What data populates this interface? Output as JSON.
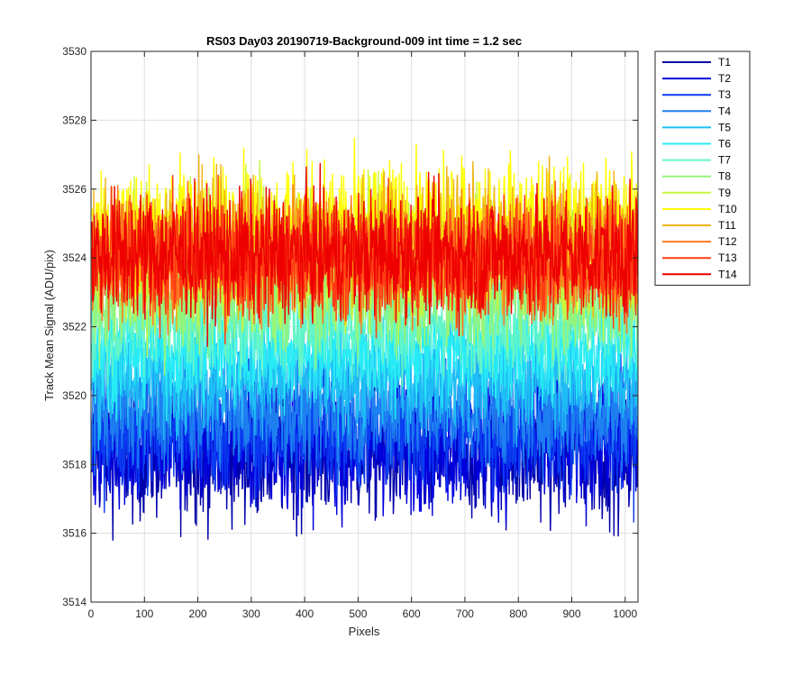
{
  "chart_data": {
    "type": "line",
    "title": "RS03 Day03 20190719-Background-009 int time = 1.2 sec",
    "xlabel": "Pixels",
    "ylabel": "Track Mean Signal (ADU/pix)",
    "xlim": [
      0,
      1024
    ],
    "ylim": [
      3514,
      3530
    ],
    "xticks": [
      0,
      100,
      200,
      300,
      400,
      500,
      600,
      700,
      800,
      900,
      1000
    ],
    "yticks": [
      3514,
      3516,
      3518,
      3520,
      3522,
      3524,
      3526,
      3528,
      3530
    ],
    "grid": true,
    "legend_position": "outside-top-right",
    "num_points": 1024,
    "series": [
      {
        "name": "T1",
        "color": "#0000aa",
        "mean": 3518.3,
        "amplitude": 1.5
      },
      {
        "name": "T2",
        "color": "#0000dd",
        "mean": 3518.6,
        "amplitude": 1.5
      },
      {
        "name": "T3",
        "color": "#0a3cf0",
        "mean": 3519.0,
        "amplitude": 1.4
      },
      {
        "name": "T4",
        "color": "#1e7ff0",
        "mean": 3519.6,
        "amplitude": 1.3
      },
      {
        "name": "T5",
        "color": "#1ebdf5",
        "mean": 3520.5,
        "amplitude": 1.2
      },
      {
        "name": "T6",
        "color": "#28ecf5",
        "mean": 3521.3,
        "amplitude": 1.2
      },
      {
        "name": "T7",
        "color": "#64f5c8",
        "mean": 3522.2,
        "amplitude": 1.2
      },
      {
        "name": "T8",
        "color": "#96f578",
        "mean": 3523.0,
        "amplitude": 1.4
      },
      {
        "name": "T9",
        "color": "#c8f53c",
        "mean": 3524.0,
        "amplitude": 1.5
      },
      {
        "name": "T10",
        "color": "#ffff00",
        "mean": 3524.9,
        "amplitude": 1.5
      },
      {
        "name": "T11",
        "color": "#f0b414",
        "mean": 3524.4,
        "amplitude": 1.5
      },
      {
        "name": "T12",
        "color": "#ff781e",
        "mean": 3524.0,
        "amplitude": 1.4
      },
      {
        "name": "T13",
        "color": "#ff3c14",
        "mean": 3523.9,
        "amplitude": 1.4
      },
      {
        "name": "T14",
        "color": "#ee0000",
        "mean": 3524.1,
        "amplitude": 1.4
      }
    ]
  }
}
